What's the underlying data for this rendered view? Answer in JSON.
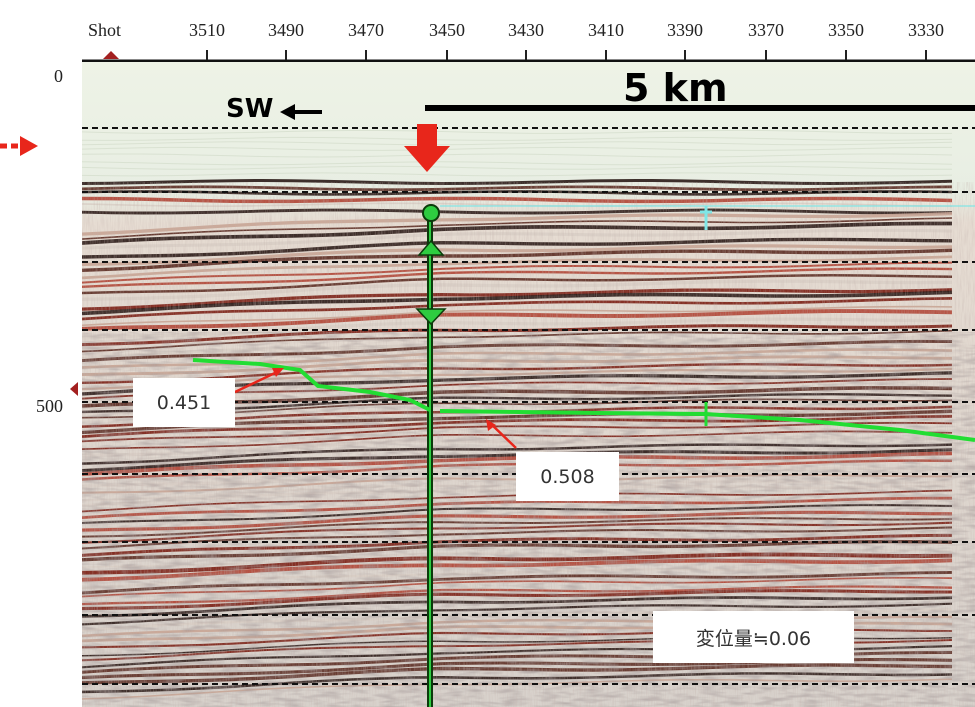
{
  "axis": {
    "shot_label": "Shot",
    "ticks": [
      "3510",
      "3490",
      "3470",
      "3450",
      "3430",
      "3410",
      "3390",
      "3370",
      "3350",
      "3330"
    ],
    "y_labels": [
      "0",
      "500"
    ]
  },
  "scale_bar": {
    "label": "5 km"
  },
  "direction": {
    "label": "SW"
  },
  "annotations": {
    "left_value": "0.451",
    "right_value": "0.508",
    "displacement": "変位量≒0.06"
  },
  "colors": {
    "horizon": "#22dd33",
    "fault": "#1a8a1a",
    "marker_red": "#e8261b",
    "cyan_marker": "#7fe6e6"
  },
  "icons": {
    "arrow_left": "left-arrow-icon",
    "arrow_down": "down-arrow-icon",
    "arrow_right": "right-arrow-icon"
  }
}
